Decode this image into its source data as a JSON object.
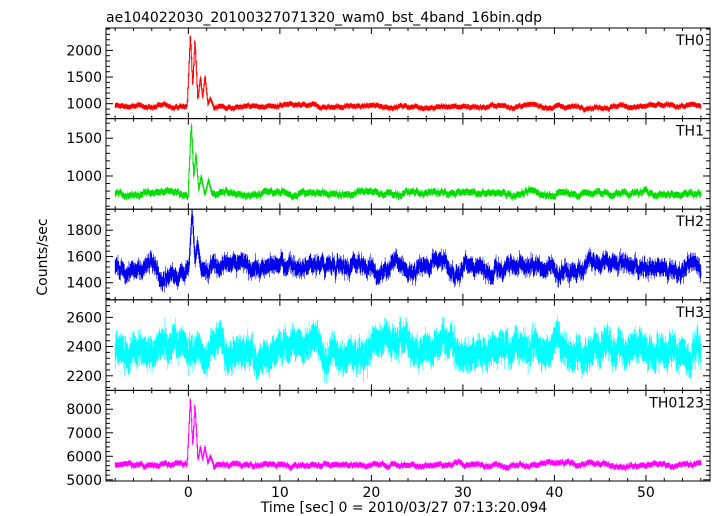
{
  "chart_data": {
    "type": "line",
    "title": "ae104022030_20100327071320_wam0_bst_4band_16bin.qdp",
    "xlabel": "Time [sec] 0 = 2010/03/27 07:13:20.094",
    "ylabel": "Counts/sec",
    "xlim": [
      -9,
      57
    ],
    "x_ticks": [
      0,
      10,
      20,
      30,
      40,
      50
    ],
    "x_range_data": [
      -8,
      56
    ],
    "grid": false,
    "panels": [
      {
        "name": "TH0",
        "color": "#ff0000",
        "ylim": [
          720,
          2420
        ],
        "y_ticks": [
          1000,
          1500,
          2000
        ],
        "baseline": 950,
        "noise": 40,
        "error": 45,
        "peaks": [
          {
            "t": 0.2,
            "v": 2300
          },
          {
            "t": 0.7,
            "v": 2200
          },
          {
            "t": 1.3,
            "v": 1500
          },
          {
            "t": 1.8,
            "v": 1520
          },
          {
            "t": 2.4,
            "v": 1100
          }
        ]
      },
      {
        "name": "TH1",
        "color": "#00dd00",
        "ylim": [
          560,
          1760
        ],
        "y_ticks": [
          1000,
          1500
        ],
        "baseline": 770,
        "noise": 45,
        "error": 40,
        "peaks": [
          {
            "t": 0.3,
            "v": 1700
          },
          {
            "t": 0.8,
            "v": 1300
          },
          {
            "t": 1.4,
            "v": 1000
          },
          {
            "t": 2.2,
            "v": 950
          }
        ]
      },
      {
        "name": "TH2",
        "color": "#0000ee",
        "ylim": [
          1270,
          1960
        ],
        "y_ticks": [
          1400,
          1600,
          1800
        ],
        "baseline": 1520,
        "noise": 75,
        "error": 55,
        "peaks": [
          {
            "t": 0.4,
            "v": 1950
          },
          {
            "t": 1.0,
            "v": 1700
          }
        ]
      },
      {
        "name": "TH3",
        "color": "#00ffff",
        "ylim": [
          2100,
          2720
        ],
        "y_ticks": [
          2200,
          2400,
          2600
        ],
        "baseline": 2400,
        "noise": 100,
        "error": 90,
        "peaks": []
      },
      {
        "name": "TH0123",
        "color": "#ff00ff",
        "ylim": [
          4950,
          8800
        ],
        "y_ticks": [
          5000,
          6000,
          7000,
          8000
        ],
        "baseline": 5650,
        "noise": 110,
        "error": 110,
        "peaks": [
          {
            "t": 0.2,
            "v": 8500
          },
          {
            "t": 0.7,
            "v": 8200
          },
          {
            "t": 1.3,
            "v": 6400
          },
          {
            "t": 1.8,
            "v": 6400
          },
          {
            "t": 2.4,
            "v": 6000
          }
        ]
      }
    ]
  }
}
